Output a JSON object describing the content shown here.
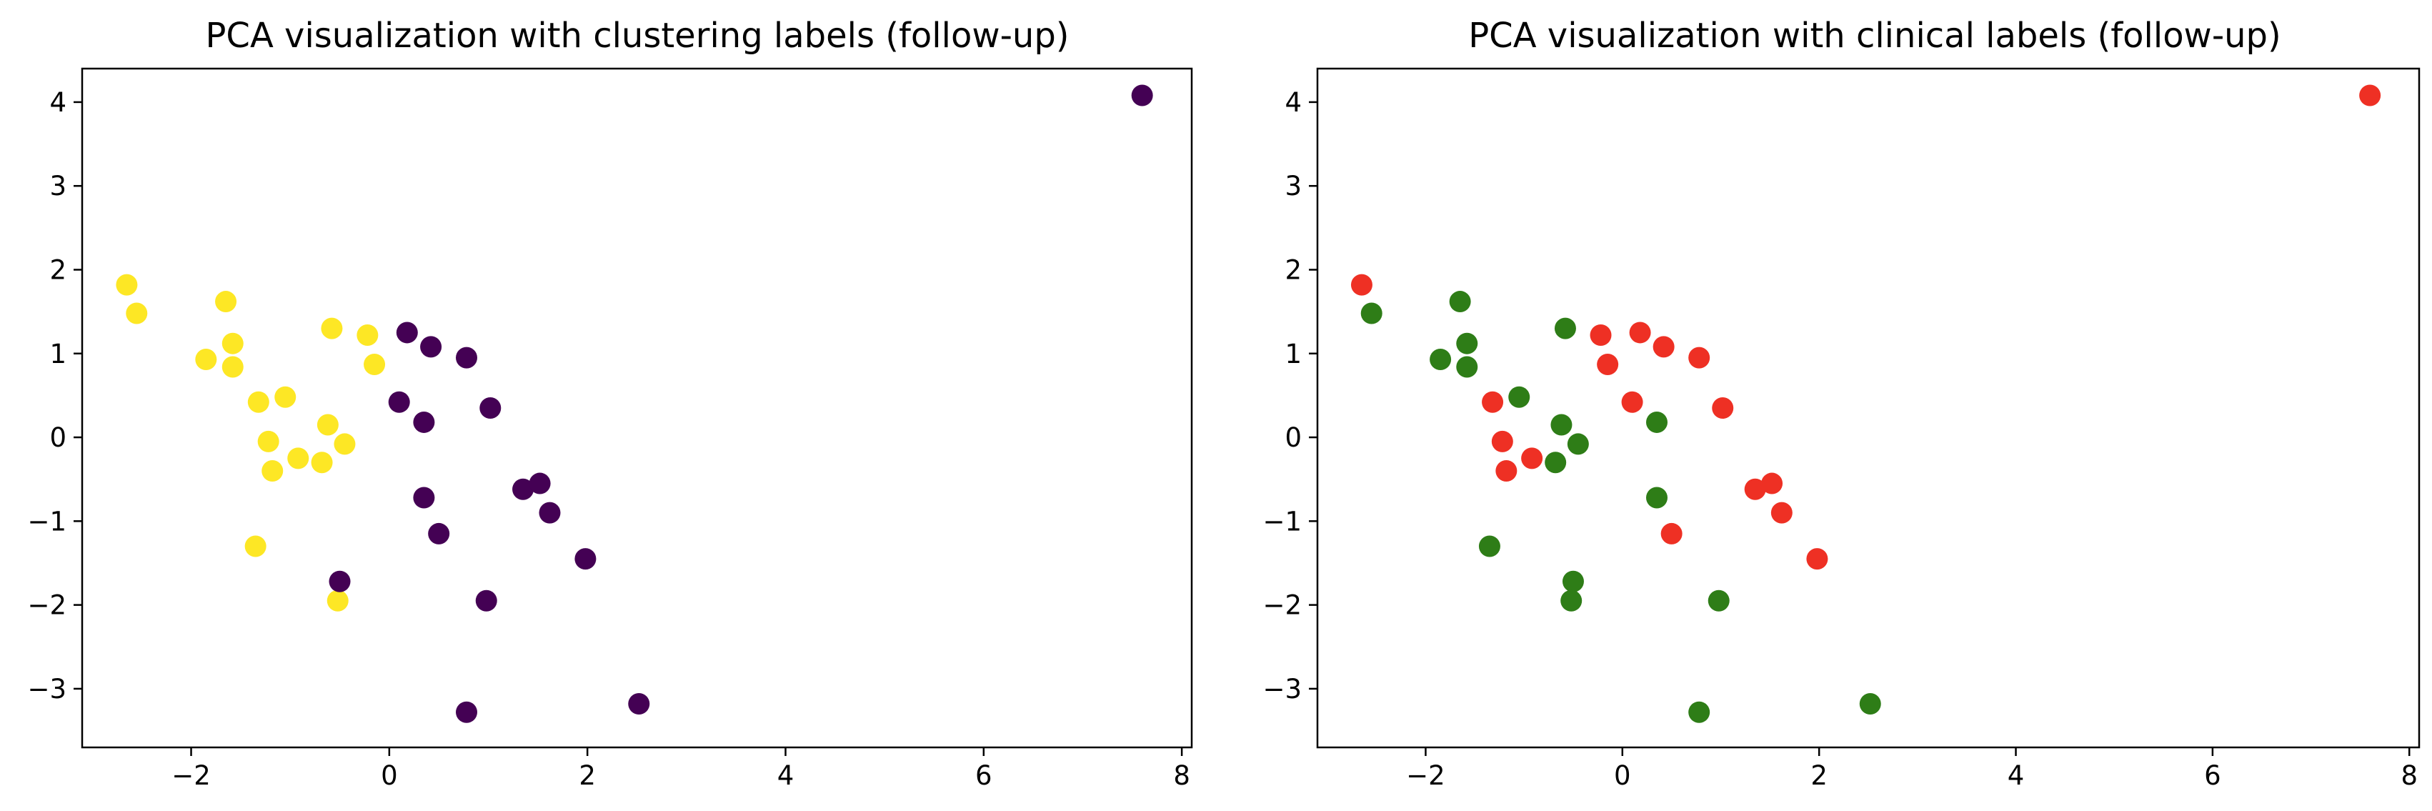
{
  "figure": {
    "background": "#ffffff"
  },
  "chart_data": [
    {
      "type": "scatter",
      "title": "PCA visualization with clustering labels (follow-up)",
      "xlabel": "",
      "ylabel": "",
      "xlim": [
        -3.1,
        8.1
      ],
      "ylim": [
        -3.7,
        4.4
      ],
      "xticks": [
        -2,
        0,
        2,
        4,
        6,
        8
      ],
      "yticks": [
        -3,
        -2,
        -1,
        0,
        1,
        2,
        3,
        4
      ],
      "xtick_labels": [
        "−2",
        "0",
        "2",
        "4",
        "6",
        "8"
      ],
      "ytick_labels": [
        "−3",
        "−2",
        "−1",
        "0",
        "1",
        "2",
        "3",
        "4"
      ],
      "grid": false,
      "series": [
        {
          "color": "#fde725",
          "points": [
            {
              "x": -2.65,
              "y": 1.82
            },
            {
              "x": -2.55,
              "y": 1.48
            },
            {
              "x": -1.65,
              "y": 1.62
            },
            {
              "x": -1.58,
              "y": 1.12
            },
            {
              "x": -1.85,
              "y": 0.93
            },
            {
              "x": -1.58,
              "y": 0.84
            },
            {
              "x": -0.58,
              "y": 1.3
            },
            {
              "x": -0.22,
              "y": 1.22
            },
            {
              "x": -0.15,
              "y": 0.87
            },
            {
              "x": -1.32,
              "y": 0.42
            },
            {
              "x": -1.05,
              "y": 0.48
            },
            {
              "x": -1.22,
              "y": -0.05
            },
            {
              "x": -0.92,
              "y": -0.25
            },
            {
              "x": -1.18,
              "y": -0.4
            },
            {
              "x": -0.62,
              "y": 0.15
            },
            {
              "x": -0.68,
              "y": -0.3
            },
            {
              "x": -0.45,
              "y": -0.08
            },
            {
              "x": -1.35,
              "y": -1.3
            },
            {
              "x": -0.52,
              "y": -1.95
            }
          ]
        },
        {
          "color": "#440154",
          "points": [
            {
              "x": 7.6,
              "y": 4.08
            },
            {
              "x": 0.18,
              "y": 1.25
            },
            {
              "x": 0.42,
              "y": 1.08
            },
            {
              "x": 0.78,
              "y": 0.95
            },
            {
              "x": 0.1,
              "y": 0.42
            },
            {
              "x": 0.35,
              "y": 0.18
            },
            {
              "x": 1.02,
              "y": 0.35
            },
            {
              "x": 0.35,
              "y": -0.72
            },
            {
              "x": 1.35,
              "y": -0.62
            },
            {
              "x": 1.52,
              "y": -0.55
            },
            {
              "x": 1.62,
              "y": -0.9
            },
            {
              "x": 0.5,
              "y": -1.15
            },
            {
              "x": 1.98,
              "y": -1.45
            },
            {
              "x": -0.5,
              "y": -1.72
            },
            {
              "x": 0.98,
              "y": -1.95
            },
            {
              "x": 0.78,
              "y": -3.28
            },
            {
              "x": 2.52,
              "y": -3.18
            }
          ]
        }
      ]
    },
    {
      "type": "scatter",
      "title": "PCA visualization with clinical labels (follow-up)",
      "xlabel": "",
      "ylabel": "",
      "xlim": [
        -3.1,
        8.1
      ],
      "ylim": [
        -3.7,
        4.4
      ],
      "xticks": [
        -2,
        0,
        2,
        4,
        6,
        8
      ],
      "yticks": [
        -3,
        -2,
        -1,
        0,
        1,
        2,
        3,
        4
      ],
      "xtick_labels": [
        "−2",
        "0",
        "2",
        "4",
        "6",
        "8"
      ],
      "ytick_labels": [
        "−3",
        "−2",
        "−1",
        "0",
        "1",
        "2",
        "3",
        "4"
      ],
      "grid": false,
      "series": [
        {
          "color": "#ee3024",
          "points": [
            {
              "x": 7.6,
              "y": 4.08
            },
            {
              "x": -2.65,
              "y": 1.82
            },
            {
              "x": -0.22,
              "y": 1.22
            },
            {
              "x": -0.15,
              "y": 0.87
            },
            {
              "x": 0.18,
              "y": 1.25
            },
            {
              "x": 0.42,
              "y": 1.08
            },
            {
              "x": 0.78,
              "y": 0.95
            },
            {
              "x": 0.1,
              "y": 0.42
            },
            {
              "x": 1.02,
              "y": 0.35
            },
            {
              "x": -1.32,
              "y": 0.42
            },
            {
              "x": -1.22,
              "y": -0.05
            },
            {
              "x": -0.92,
              "y": -0.25
            },
            {
              "x": -1.18,
              "y": -0.4
            },
            {
              "x": 1.35,
              "y": -0.62
            },
            {
              "x": 1.52,
              "y": -0.55
            },
            {
              "x": 1.62,
              "y": -0.9
            },
            {
              "x": 0.5,
              "y": -1.15
            },
            {
              "x": 1.98,
              "y": -1.45
            }
          ]
        },
        {
          "color": "#2e7d17",
          "points": [
            {
              "x": -2.55,
              "y": 1.48
            },
            {
              "x": -1.65,
              "y": 1.62
            },
            {
              "x": -1.58,
              "y": 1.12
            },
            {
              "x": -1.85,
              "y": 0.93
            },
            {
              "x": -1.58,
              "y": 0.84
            },
            {
              "x": -0.58,
              "y": 1.3
            },
            {
              "x": -1.05,
              "y": 0.48
            },
            {
              "x": -0.62,
              "y": 0.15
            },
            {
              "x": 0.35,
              "y": 0.18
            },
            {
              "x": -0.68,
              "y": -0.3
            },
            {
              "x": -0.45,
              "y": -0.08
            },
            {
              "x": 0.35,
              "y": -0.72
            },
            {
              "x": -1.35,
              "y": -1.3
            },
            {
              "x": -0.5,
              "y": -1.72
            },
            {
              "x": -0.52,
              "y": -1.95
            },
            {
              "x": 0.98,
              "y": -1.95
            },
            {
              "x": 0.78,
              "y": -3.28
            },
            {
              "x": 2.52,
              "y": -3.18
            }
          ]
        }
      ]
    }
  ]
}
